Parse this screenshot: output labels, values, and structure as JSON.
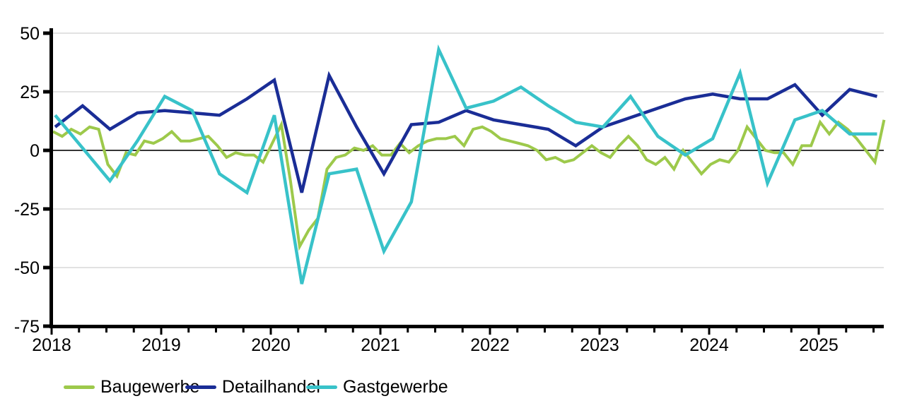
{
  "chart_data": {
    "type": "line",
    "title": "",
    "xlabel": "",
    "ylabel": "",
    "ylim": [
      -75,
      50
    ],
    "y_ticks": [
      50,
      25,
      0,
      -25,
      -50,
      -75
    ],
    "x_tick_labels": [
      "2018",
      "2019",
      "2020",
      "2021",
      "2022",
      "2023",
      "2024",
      "2025"
    ],
    "grid": "horizontal",
    "legend_position": "bottom",
    "zero_line": true,
    "colors": {
      "grid": "#d9d9d9",
      "zero_line": "#1a1a1a",
      "axis": "#000000",
      "tick_label": "#000000"
    },
    "series": [
      {
        "name": "Baugewerbe",
        "color": "#9dc94b",
        "points_per_year": 12,
        "stroke_width": 4,
        "values": [
          8,
          6,
          9,
          7,
          10,
          9,
          -6,
          -11,
          -1,
          -2,
          4,
          3,
          5,
          8,
          4,
          4,
          5,
          6,
          2,
          -3,
          -1,
          -2,
          -2,
          -5,
          3,
          11,
          -13,
          -41,
          -34,
          -29,
          -8,
          -3,
          -2,
          1,
          0,
          2,
          -2,
          -2,
          3,
          -1,
          2,
          4,
          5,
          5,
          6,
          2,
          9,
          10,
          8,
          5,
          4,
          3,
          2,
          0,
          -4,
          -3,
          -5,
          -4,
          -1,
          2,
          -1,
          -3,
          2,
          6,
          2,
          -4,
          -6,
          -3,
          -8,
          0,
          -5,
          -10,
          -6,
          -4,
          -5,
          0,
          10,
          5,
          0,
          -1,
          -1,
          -6,
          2,
          2,
          12,
          7,
          12,
          9,
          5,
          0,
          -5,
          13
        ]
      },
      {
        "name": "Detailhandel",
        "color": "#1a2d96",
        "points_per_year": 4,
        "stroke_width": 4.5,
        "values": [
          10,
          19,
          9,
          16,
          17,
          16,
          15,
          22,
          30,
          -18,
          32,
          10,
          -10,
          11,
          12,
          17,
          13,
          11,
          9,
          2,
          10,
          14,
          18,
          22,
          24,
          22,
          22,
          28,
          15,
          26,
          23
        ]
      },
      {
        "name": "Gastgewerbe",
        "color": "#38c2c9",
        "points_per_year": 4,
        "stroke_width": 4.5,
        "values": [
          15,
          1,
          -13,
          4,
          23,
          17,
          -10,
          -18,
          15,
          -57,
          -10,
          -8,
          -43,
          -22,
          43,
          18,
          21,
          27,
          19,
          12,
          10,
          23,
          6,
          -2,
          5,
          33,
          -14,
          13,
          17,
          7,
          7
        ]
      }
    ]
  },
  "legend": {
    "items": [
      {
        "label": "Baugewerbe"
      },
      {
        "label": "Detailhandel"
      },
      {
        "label": "Gastgewerbe"
      }
    ]
  }
}
